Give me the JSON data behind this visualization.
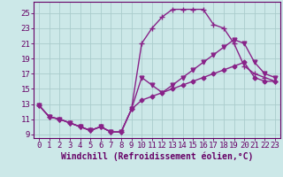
{
  "xlabel": "Windchill (Refroidissement éolien,°C)",
  "xlim": [
    -0.5,
    23.5
  ],
  "ylim": [
    8.5,
    26.5
  ],
  "xticks": [
    0,
    1,
    2,
    3,
    4,
    5,
    6,
    7,
    8,
    9,
    10,
    11,
    12,
    13,
    14,
    15,
    16,
    17,
    18,
    19,
    20,
    21,
    22,
    23
  ],
  "yticks": [
    9,
    11,
    13,
    15,
    17,
    19,
    21,
    23,
    25
  ],
  "bg_color": "#cce8e8",
  "grid_color": "#aacccc",
  "line_color": "#882288",
  "line1_x": [
    0,
    1,
    2,
    3,
    4,
    5,
    6,
    7,
    8,
    9,
    10,
    11,
    12,
    13,
    14,
    15,
    16,
    17,
    18,
    19,
    20,
    21,
    22,
    23
  ],
  "line1_y": [
    12.8,
    11.3,
    11.0,
    10.5,
    10.0,
    9.5,
    10.0,
    9.3,
    9.3,
    12.3,
    21.0,
    23.0,
    24.5,
    25.5,
    25.5,
    25.5,
    25.5,
    23.5,
    23.0,
    21.0,
    18.0,
    17.0,
    16.5,
    16.0
  ],
  "line2_x": [
    0,
    1,
    2,
    3,
    4,
    5,
    6,
    7,
    8,
    9,
    10,
    11,
    12,
    13,
    14,
    15,
    16,
    17,
    18,
    19,
    20,
    21,
    22,
    23
  ],
  "line2_y": [
    12.8,
    11.3,
    11.0,
    10.5,
    10.0,
    9.5,
    10.0,
    9.3,
    9.3,
    12.3,
    16.5,
    15.5,
    14.5,
    15.5,
    16.5,
    17.5,
    18.5,
    19.5,
    20.5,
    21.5,
    21.0,
    18.5,
    17.0,
    16.5
  ],
  "line3_x": [
    0,
    1,
    2,
    3,
    4,
    5,
    6,
    7,
    8,
    9,
    10,
    11,
    12,
    13,
    14,
    15,
    16,
    17,
    18,
    19,
    20,
    21,
    22,
    23
  ],
  "line3_y": [
    12.8,
    11.3,
    11.0,
    10.5,
    10.0,
    9.5,
    10.0,
    9.3,
    9.3,
    12.3,
    13.5,
    14.0,
    14.5,
    15.0,
    15.5,
    16.0,
    16.5,
    17.0,
    17.5,
    18.0,
    18.5,
    16.5,
    16.0,
    16.0
  ],
  "marker1": "P",
  "marker2": "v",
  "marker3": "D",
  "markersize1": 3.0,
  "markersize2": 3.5,
  "markersize3": 2.5,
  "linewidth": 1.0,
  "xlabel_fontsize": 7,
  "tick_fontsize": 6.5,
  "axis_color": "#660066"
}
